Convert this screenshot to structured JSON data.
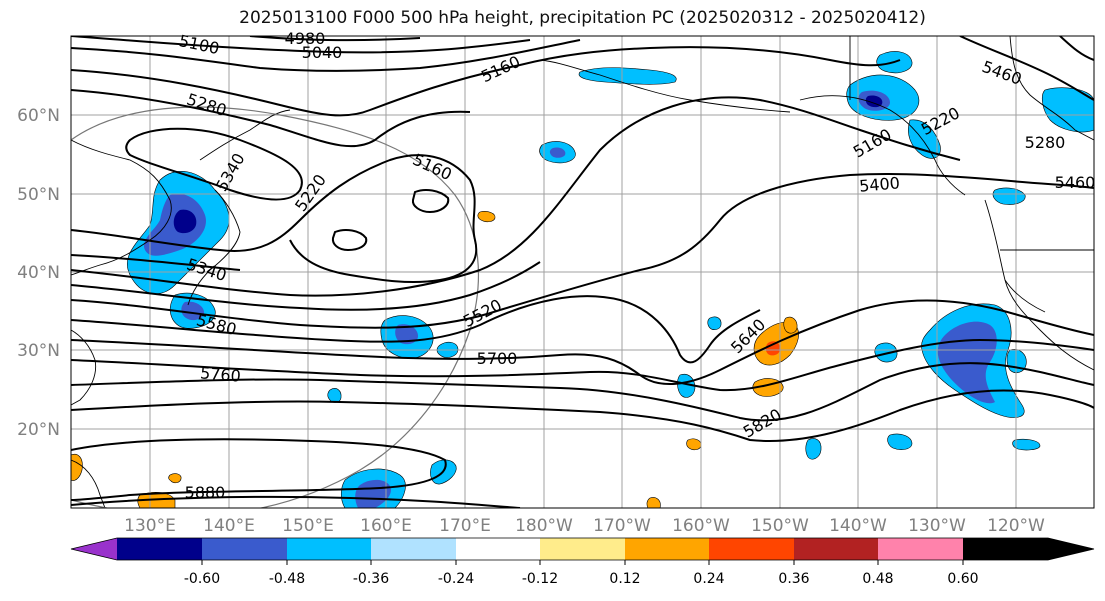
{
  "title": "2025013100 F000 500 hPa height, precipitation PC (2025020312 - 2025020412)",
  "lat_labels": [
    "60°N",
    "50°N",
    "40°N",
    "30°N",
    "20°N"
  ],
  "lon_labels": [
    "130°E",
    "140°E",
    "150°E",
    "160°E",
    "170°E",
    "180°W",
    "170°W",
    "160°W",
    "150°W",
    "140°W",
    "130°W",
    "120°W"
  ],
  "contour_labels": [
    "4980",
    "5040",
    "5100",
    "5160",
    "5160",
    "5220",
    "5220",
    "5280",
    "5280",
    "5340",
    "5340",
    "5400",
    "5460",
    "5460",
    "5520",
    "5580",
    "5640",
    "5700",
    "5760",
    "5820",
    "5880",
    "5160"
  ],
  "colorbar": {
    "ticks": [
      "-0.60",
      "-0.48",
      "-0.36",
      "-0.24",
      "-0.12",
      "0.12",
      "0.24",
      "0.36",
      "0.48",
      "0.60"
    ],
    "colors": [
      "#9932CC",
      "#00008B",
      "#3A5BCD",
      "#00BFFF",
      "#B0E2FF",
      "#FFFFFF",
      "#FFEC8B",
      "#FFA500",
      "#FF4500",
      "#B22222",
      "#FF82AB"
    ]
  }
}
